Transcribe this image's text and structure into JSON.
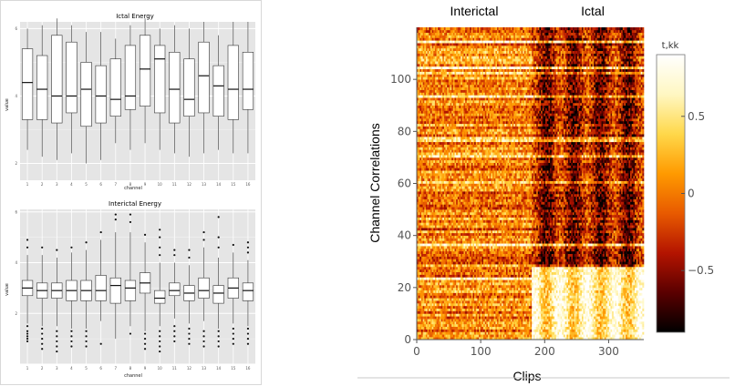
{
  "chart_data": [
    {
      "type": "box",
      "title": "Ictal Energy",
      "xlabel": "channel",
      "ylabel": "value",
      "categories": [
        "1",
        "2",
        "3",
        "4",
        "5",
        "6",
        "7",
        "8",
        "9",
        "10",
        "11",
        "12",
        "13",
        "14",
        "15",
        "16"
      ],
      "ylim": [
        1.5,
        6.2
      ],
      "yticks": [
        2,
        4,
        6
      ],
      "grid": true,
      "boxes": [
        {
          "whisker_low": 2.4,
          "q1": 3.3,
          "median": 4.4,
          "q3": 5.4,
          "whisker_high": 6.0
        },
        {
          "whisker_low": 2.2,
          "q1": 3.3,
          "median": 4.2,
          "q3": 5.2,
          "whisker_high": 6.1
        },
        {
          "whisker_low": 2.1,
          "q1": 3.2,
          "median": 4.0,
          "q3": 5.8,
          "whisker_high": 6.3
        },
        {
          "whisker_low": 2.3,
          "q1": 3.5,
          "median": 4.0,
          "q3": 5.6,
          "whisker_high": 6.1
        },
        {
          "whisker_low": 2.0,
          "q1": 3.1,
          "median": 4.2,
          "q3": 5.0,
          "whisker_high": 5.9
        },
        {
          "whisker_low": 2.1,
          "q1": 3.2,
          "median": 4.0,
          "q3": 4.9,
          "whisker_high": 5.9
        },
        {
          "whisker_low": 2.6,
          "q1": 3.4,
          "median": 3.9,
          "q3": 5.1,
          "whisker_high": 5.7
        },
        {
          "whisker_low": 2.4,
          "q1": 3.6,
          "median": 4.0,
          "q3": 5.5,
          "whisker_high": 6.1
        },
        {
          "whisker_low": 2.6,
          "q1": 3.7,
          "median": 4.8,
          "q3": 5.8,
          "whisker_high": 6.3
        },
        {
          "whisker_low": 2.4,
          "q1": 3.5,
          "median": 5.1,
          "q3": 5.5,
          "whisker_high": 6.0
        },
        {
          "whisker_low": 2.3,
          "q1": 3.2,
          "median": 4.2,
          "q3": 5.3,
          "whisker_high": 6.1
        },
        {
          "whisker_low": 2.2,
          "q1": 3.4,
          "median": 3.9,
          "q3": 5.1,
          "whisker_high": 6.0
        },
        {
          "whisker_low": 2.3,
          "q1": 3.5,
          "median": 4.6,
          "q3": 5.6,
          "whisker_high": 6.2
        },
        {
          "whisker_low": 2.4,
          "q1": 3.4,
          "median": 4.3,
          "q3": 4.9,
          "whisker_high": 5.8
        },
        {
          "whisker_low": 2.3,
          "q1": 3.3,
          "median": 4.2,
          "q3": 5.5,
          "whisker_high": 6.2
        },
        {
          "whisker_low": 2.3,
          "q1": 3.6,
          "median": 4.2,
          "q3": 5.3,
          "whisker_high": 6.2
        }
      ]
    },
    {
      "type": "box",
      "title": "Interictal Energy",
      "xlabel": "channel",
      "ylabel": "value",
      "categories": [
        "1",
        "2",
        "3",
        "4",
        "5",
        "6",
        "7",
        "8",
        "9",
        "10",
        "11",
        "12",
        "13",
        "14",
        "15",
        "16"
      ],
      "ylim": [
        0,
        6.1
      ],
      "yticks": [
        2,
        4,
        6
      ],
      "grid": true,
      "boxes": [
        {
          "whisker_low": 1.6,
          "q1": 2.7,
          "median": 3.0,
          "q3": 3.3,
          "whisker_high": 4.3,
          "outliers": [
            4.6,
            4.9,
            1.5,
            1.3,
            1.2,
            1.1,
            1.0,
            0.9
          ]
        },
        {
          "whisker_low": 1.5,
          "q1": 2.6,
          "median": 2.9,
          "q3": 3.2,
          "whisker_high": 4.3,
          "outliers": [
            4.6,
            1.4,
            1.2,
            1.0,
            0.8,
            0.6
          ]
        },
        {
          "whisker_low": 1.5,
          "q1": 2.6,
          "median": 2.9,
          "q3": 3.2,
          "whisker_high": 4.2,
          "outliers": [
            4.5,
            1.3,
            1.1,
            0.9,
            0.7,
            0.5
          ]
        },
        {
          "whisker_low": 1.4,
          "q1": 2.5,
          "median": 2.9,
          "q3": 3.3,
          "whisker_high": 4.4,
          "outliers": [
            4.6,
            1.3,
            1.1,
            0.9,
            0.7
          ]
        },
        {
          "whisker_low": 1.4,
          "q1": 2.5,
          "median": 2.9,
          "q3": 3.3,
          "whisker_high": 4.5,
          "outliers": [
            4.8,
            1.3,
            1.1,
            0.9,
            0.7
          ]
        },
        {
          "whisker_low": 1.7,
          "q1": 2.5,
          "median": 2.9,
          "q3": 3.5,
          "whisker_high": 4.9,
          "outliers": [
            5.2,
            0.8
          ]
        },
        {
          "whisker_low": 1.0,
          "q1": 2.4,
          "median": 3.1,
          "q3": 3.4,
          "whisker_high": 5.2,
          "outliers": [
            5.7,
            5.9
          ]
        },
        {
          "whisker_low": 1.5,
          "q1": 2.5,
          "median": 3.0,
          "q3": 3.3,
          "whisker_high": 5.2,
          "outliers": [
            5.6,
            5.9,
            1.2
          ]
        },
        {
          "whisker_low": 1.3,
          "q1": 2.8,
          "median": 3.2,
          "q3": 3.6,
          "whisker_high": 4.8,
          "outliers": [
            5.1,
            1.2,
            1.0,
            0.8,
            0.6
          ]
        },
        {
          "whisker_low": 1.5,
          "q1": 2.4,
          "median": 2.6,
          "q3": 2.9,
          "whisker_high": 4.0,
          "outliers": [
            4.3,
            4.6,
            5.0,
            5.3,
            1.3,
            1.1,
            0.9,
            0.7,
            0.5
          ]
        },
        {
          "whisker_low": 1.8,
          "q1": 2.7,
          "median": 2.9,
          "q3": 3.2,
          "whisker_high": 4.0,
          "outliers": [
            4.3,
            4.5,
            1.5,
            1.3,
            1.1,
            0.9
          ]
        },
        {
          "whisker_low": 1.6,
          "q1": 2.5,
          "median": 2.8,
          "q3": 3.1,
          "whisker_high": 3.9,
          "outliers": [
            4.2,
            4.5,
            1.4,
            1.2,
            1.0,
            0.8
          ]
        },
        {
          "whisker_low": 1.7,
          "q1": 2.6,
          "median": 2.9,
          "q3": 3.4,
          "whisker_high": 4.6,
          "outliers": [
            4.9,
            5.2,
            1.3,
            1.1,
            0.9,
            0.7
          ]
        },
        {
          "whisker_low": 1.4,
          "q1": 2.4,
          "median": 2.8,
          "q3": 3.1,
          "whisker_high": 4.2,
          "outliers": [
            4.6,
            5.0,
            5.8,
            1.3,
            1.1,
            0.9,
            0.7
          ]
        },
        {
          "whisker_low": 1.6,
          "q1": 2.6,
          "median": 3.0,
          "q3": 3.4,
          "whisker_high": 4.4,
          "outliers": [
            4.7,
            1.4,
            1.2,
            1.0,
            0.8
          ]
        },
        {
          "whisker_low": 1.5,
          "q1": 2.5,
          "median": 2.9,
          "q3": 3.2,
          "whisker_high": 4.1,
          "outliers": [
            4.4,
            4.6,
            4.8,
            1.4,
            1.2,
            1.0,
            0.8
          ]
        }
      ]
    },
    {
      "type": "heatmap",
      "title": "",
      "xlabel": "Clips",
      "ylabel": "Channel Correlations",
      "annotations": [
        "Interictal",
        "Ictal"
      ],
      "n_clips": 355,
      "n_correlations": 120,
      "ictal_start_clip": 180,
      "xlim": [
        0,
        355
      ],
      "ylim": [
        0,
        120
      ],
      "xticks": [
        0,
        100,
        200,
        300
      ],
      "yticks": [
        0,
        20,
        40,
        60,
        80,
        100
      ],
      "colorbar": {
        "label": "t,kk",
        "range": [
          -0.9,
          0.9
        ],
        "ticks": [
          {
            "value": 0.5,
            "label": "0.5"
          },
          {
            "value": 0,
            "label": "0"
          },
          {
            "value": -0.5,
            "label": "−0.5"
          }
        ],
        "colors": [
          "#000000",
          "#5a0000",
          "#b41400",
          "#e85a00",
          "#ff9a00",
          "#ffd84a",
          "#fff7c2",
          "#ffffff"
        ]
      }
    }
  ]
}
